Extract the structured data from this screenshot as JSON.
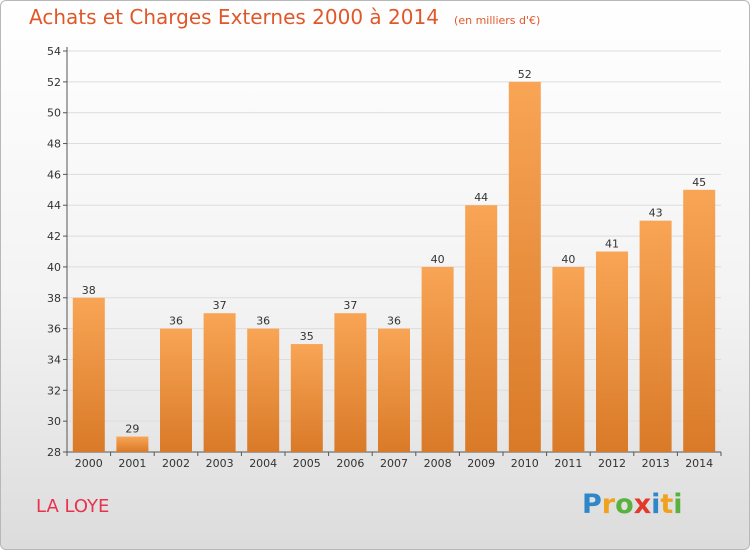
{
  "title": "Achats et Charges Externes 2000 à 2014",
  "subtitle": "(en milliers d'€)",
  "commune": "LA LOYE",
  "logo": {
    "text": "Proxiti",
    "letters": [
      {
        "ch": "P",
        "color": "#2f86c8"
      },
      {
        "ch": "r",
        "color": "#f0a21f"
      },
      {
        "ch": "o",
        "color": "#59b13e"
      },
      {
        "ch": "x",
        "color": "#e13a2a"
      },
      {
        "ch": "i",
        "color": "#2f86c8"
      },
      {
        "ch": "t",
        "color": "#f0a21f"
      },
      {
        "ch": "i",
        "color": "#59b13e"
      }
    ]
  },
  "colors": {
    "title": "#e0582a",
    "commune": "#e8324f",
    "bar_light": "#f8a555",
    "bar_dark": "#d97a28",
    "grid": "#dddddd"
  },
  "chart_data": {
    "type": "bar",
    "categories": [
      "2000",
      "2001",
      "2002",
      "2003",
      "2004",
      "2005",
      "2006",
      "2007",
      "2008",
      "2009",
      "2010",
      "2011",
      "2012",
      "2013",
      "2014"
    ],
    "values": [
      38,
      29,
      36,
      37,
      36,
      35,
      37,
      36,
      40,
      44,
      52,
      40,
      41,
      43,
      45
    ],
    "ylim": [
      28,
      54
    ],
    "yticks": [
      28,
      30,
      32,
      34,
      36,
      38,
      40,
      42,
      44,
      46,
      48,
      50,
      52,
      54
    ],
    "grid": true,
    "data_labels": true
  }
}
